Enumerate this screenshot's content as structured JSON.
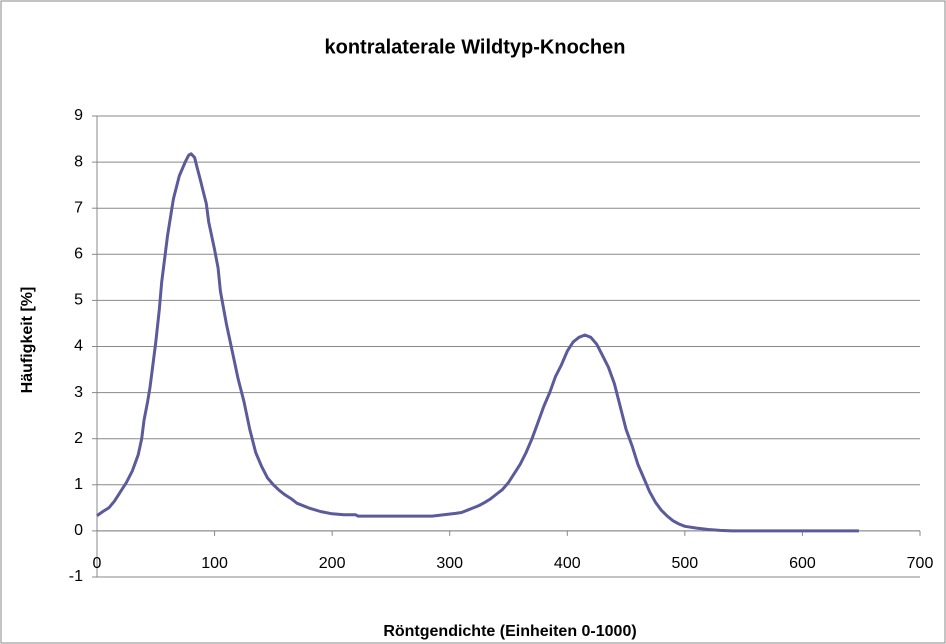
{
  "chart_data": {
    "type": "line",
    "title": "kontralaterale Wildtyp-Knochen",
    "xlabel": "Röntgendichte (Einheiten 0-1000)",
    "ylabel": "Häufigkeit [%]",
    "xlim": [
      0,
      700
    ],
    "xticks": [
      0,
      100,
      200,
      300,
      400,
      500,
      600,
      700
    ],
    "ylim": [
      -1,
      9
    ],
    "yticks": [
      -1,
      0,
      1,
      2,
      3,
      4,
      5,
      6,
      7,
      8,
      9
    ],
    "grid": true,
    "series": [
      {
        "color": "#5b5b9c",
        "x": [
          0,
          5,
          10,
          15,
          20,
          25,
          30,
          35,
          38,
          40,
          43,
          45,
          47,
          50,
          53,
          55,
          58,
          60,
          65,
          70,
          75,
          78,
          80,
          83,
          85,
          88,
          90,
          93,
          95,
          100,
          103,
          105,
          110,
          115,
          120,
          125,
          130,
          135,
          140,
          145,
          150,
          155,
          160,
          165,
          170,
          180,
          190,
          200,
          210,
          220,
          222,
          230,
          250,
          270,
          285,
          295,
          305,
          310,
          315,
          320,
          325,
          330,
          335,
          340,
          345,
          350,
          355,
          360,
          365,
          370,
          375,
          380,
          385,
          390,
          395,
          400,
          405,
          410,
          415,
          420,
          425,
          430,
          435,
          440,
          445,
          450,
          455,
          460,
          465,
          470,
          475,
          480,
          485,
          490,
          495,
          500,
          510,
          520,
          530,
          540,
          560,
          600,
          648
        ],
        "values": [
          0.33,
          0.42,
          0.5,
          0.65,
          0.85,
          1.05,
          1.3,
          1.65,
          2.0,
          2.4,
          2.8,
          3.1,
          3.5,
          4.1,
          4.8,
          5.4,
          6.0,
          6.4,
          7.2,
          7.7,
          8.0,
          8.15,
          8.18,
          8.1,
          7.9,
          7.6,
          7.4,
          7.1,
          6.7,
          6.1,
          5.7,
          5.2,
          4.5,
          3.9,
          3.3,
          2.8,
          2.2,
          1.7,
          1.4,
          1.15,
          1.0,
          0.88,
          0.78,
          0.7,
          0.6,
          0.5,
          0.42,
          0.37,
          0.35,
          0.35,
          0.32,
          0.32,
          0.32,
          0.32,
          0.32,
          0.35,
          0.38,
          0.4,
          0.45,
          0.5,
          0.55,
          0.62,
          0.7,
          0.8,
          0.9,
          1.05,
          1.25,
          1.45,
          1.7,
          2.0,
          2.35,
          2.7,
          3.0,
          3.35,
          3.6,
          3.9,
          4.1,
          4.2,
          4.25,
          4.2,
          4.05,
          3.8,
          3.55,
          3.2,
          2.7,
          2.2,
          1.85,
          1.45,
          1.15,
          0.85,
          0.62,
          0.45,
          0.32,
          0.22,
          0.15,
          0.1,
          0.06,
          0.03,
          0.01,
          0,
          0,
          0,
          0
        ]
      }
    ]
  }
}
